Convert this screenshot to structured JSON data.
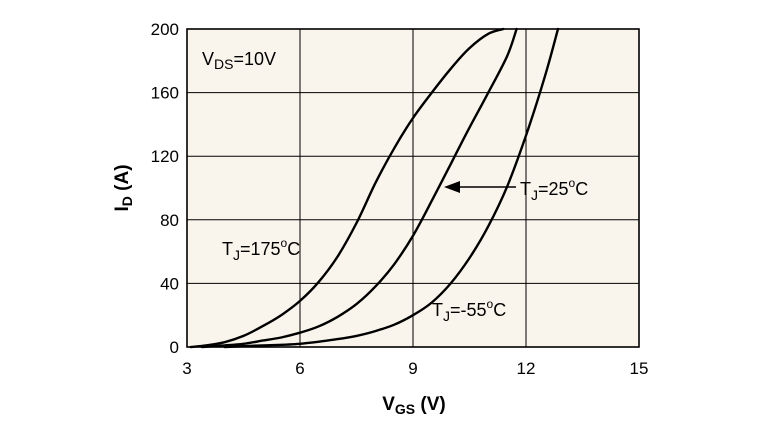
{
  "chart_data": {
    "type": "line",
    "xlabel": "V",
    "xlabel_sub": "GS",
    "xlabel_unit": " (V)",
    "ylabel": "I",
    "ylabel_sub": "D",
    "ylabel_unit": " (A)",
    "xlim": [
      3,
      15
    ],
    "ylim": [
      0,
      200
    ],
    "xticks": [
      3,
      6,
      9,
      12,
      15
    ],
    "yticks": [
      0,
      40,
      80,
      120,
      160,
      200
    ],
    "grid": true,
    "plot_background": "#faf5ec",
    "line_color": "#000000",
    "annotations": {
      "vds": {
        "main": "V",
        "sub": "DS",
        "rest": "=10V"
      },
      "t175": {
        "main": "T",
        "sub": "J",
        "rest": "=175",
        "sup": "o",
        "unit": "C"
      },
      "t25": {
        "main": "T",
        "sub": "J",
        "rest": "=25",
        "sup": "o",
        "unit": "C"
      },
      "tm55": {
        "main": "T",
        "sub": "J",
        "rest": "=-55",
        "sup": "o",
        "unit": "C"
      }
    },
    "series": [
      {
        "name": "TJ=175°C",
        "x": [
          3.1,
          3.5,
          4.0,
          4.5,
          5.0,
          5.5,
          6.0,
          6.5,
          7.0,
          7.5,
          8.0,
          8.5,
          9.0,
          9.5,
          10.0,
          10.5,
          11.0,
          11.4
        ],
        "y": [
          0,
          1,
          3,
          7,
          13,
          20,
          29,
          41,
          57,
          78,
          103,
          125,
          144,
          160,
          175,
          188,
          197,
          200
        ]
      },
      {
        "name": "TJ=25°C",
        "x": [
          3.4,
          4.0,
          4.5,
          5.0,
          5.5,
          6.0,
          6.5,
          7.0,
          7.5,
          8.0,
          8.5,
          9.0,
          9.5,
          10.0,
          10.5,
          11.0,
          11.5,
          11.75
        ],
        "y": [
          0,
          1,
          2,
          4,
          6,
          9,
          13,
          19,
          27,
          38,
          52,
          70,
          92,
          115,
          138,
          160,
          183,
          200
        ]
      },
      {
        "name": "TJ=-55°C",
        "x": [
          4.0,
          5.0,
          6.0,
          7.0,
          7.5,
          8.0,
          8.5,
          9.0,
          9.5,
          10.0,
          10.5,
          11.0,
          11.5,
          12.0,
          12.5,
          12.85
        ],
        "y": [
          0,
          1,
          2,
          5,
          7,
          10,
          14,
          20,
          28,
          40,
          56,
          76,
          101,
          133,
          170,
          200
        ]
      }
    ]
  }
}
